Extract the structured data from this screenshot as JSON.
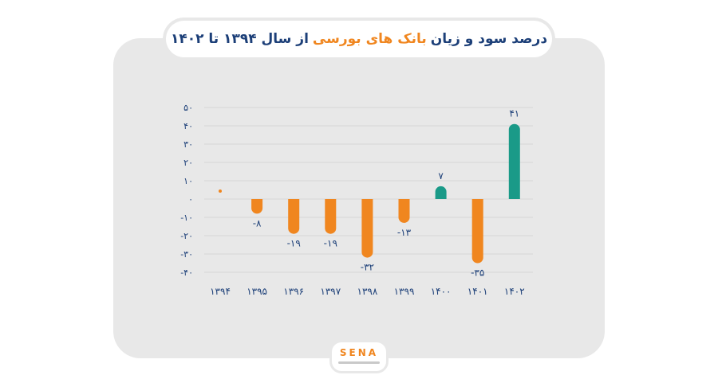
{
  "title": {
    "part_dark_1": "درصد سود و زیان",
    "part_orange": "بانک های بورسی",
    "part_dark_2": "از سال ۱۳۹۴ تا ۱۴۰۲",
    "quote_open": "❞",
    "quote_close": "❝"
  },
  "logo": {
    "text": "SENA"
  },
  "colors": {
    "positive": "#1a9a88",
    "negative": "#f0861f",
    "axis_text": "#1c3f78",
    "grid": "#d6d6d6",
    "background": "#e8e8e8"
  },
  "chart_data": {
    "type": "bar",
    "categories": [
      "۱۳۹۴",
      "۱۳۹۵",
      "۱۳۹۶",
      "۱۳۹۷",
      "۱۳۹۸",
      "۱۳۹۹",
      "۱۴۰۰",
      "۱۴۰۱",
      "۱۴۰۲"
    ],
    "values": [
      0,
      -8,
      -19,
      -19,
      -32,
      -13,
      7,
      -35,
      41
    ],
    "value_labels": [
      "",
      "-۸",
      "-۱۹",
      "-۱۹",
      "-۳۲",
      "-۱۳",
      "۷",
      "-۳۵",
      "۴۱"
    ],
    "yticks": [
      50,
      40,
      30,
      20,
      10,
      0,
      -10,
      -20,
      -30,
      -40
    ],
    "ytick_labels": [
      "۵۰",
      "۴۰",
      "۳۰",
      "۲۰",
      "۱۰",
      "۰",
      "-۱۰",
      "-۲۰",
      "-۳۰",
      "-۴۰"
    ],
    "ylim": [
      -40,
      50
    ],
    "grid": true,
    "title": "درصد سود و زیان بانک های بورسی از سال ۱۳۹۴ تا ۱۴۰۲",
    "xlabel": "",
    "ylabel": ""
  }
}
